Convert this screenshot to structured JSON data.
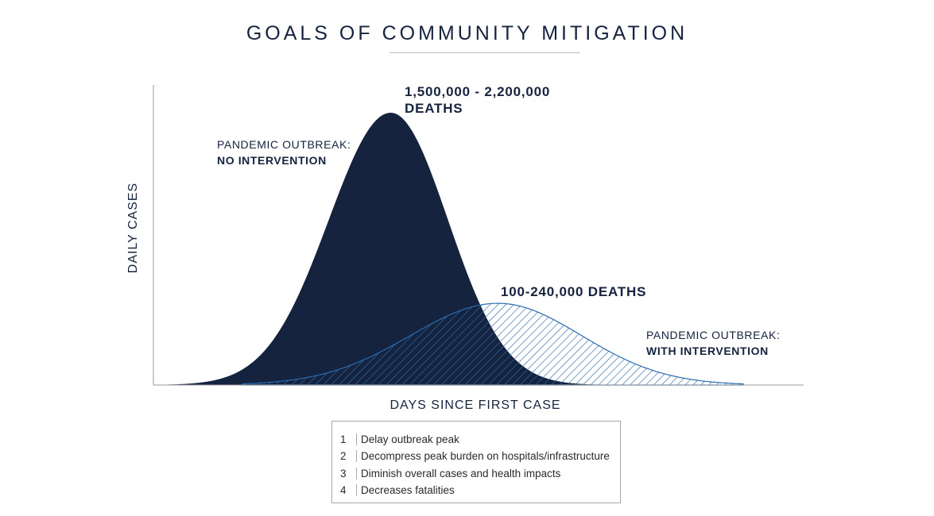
{
  "title": "GOALS OF COMMUNITY MITIGATION",
  "chart_data": {
    "type": "area",
    "title": "GOALS OF COMMUNITY MITIGATION",
    "xlabel": "DAYS SINCE FIRST CASE",
    "ylabel": "DAILY CASES",
    "grid": false,
    "series": [
      {
        "name": "PANDEMIC OUTBREAK: NO INTERVENTION",
        "fill": "solid",
        "color": "#15233f",
        "peak_relative": 1.0,
        "peak_position": 0.365,
        "annotation": "1,500,000 - 2,200,000 DEATHS"
      },
      {
        "name": "PANDEMIC OUTBREAK: WITH INTERVENTION",
        "fill": "hatched",
        "color": "#2b6cb0",
        "peak_relative": 0.3,
        "peak_position": 0.53,
        "annotation": "100-240,000 DEATHS"
      }
    ]
  },
  "labels": {
    "no_intervention_line1": "PANDEMIC OUTBREAK:",
    "no_intervention_line2": "NO INTERVENTION",
    "with_intervention_line1": "PANDEMIC OUTBREAK:",
    "with_intervention_line2": "WITH INTERVENTION",
    "deaths_high_line1": "1,500,000 - 2,200,000",
    "deaths_high_line2": "DEATHS",
    "deaths_low": "100-240,000 DEATHS"
  },
  "goals": [
    {
      "num": "1",
      "text": "Delay outbreak peak"
    },
    {
      "num": "2",
      "text": "Decompress peak burden on hospitals/infrastructure"
    },
    {
      "num": "3",
      "text": "Diminish overall cases and health impacts"
    },
    {
      "num": "4",
      "text": "Decreases fatalities"
    }
  ]
}
